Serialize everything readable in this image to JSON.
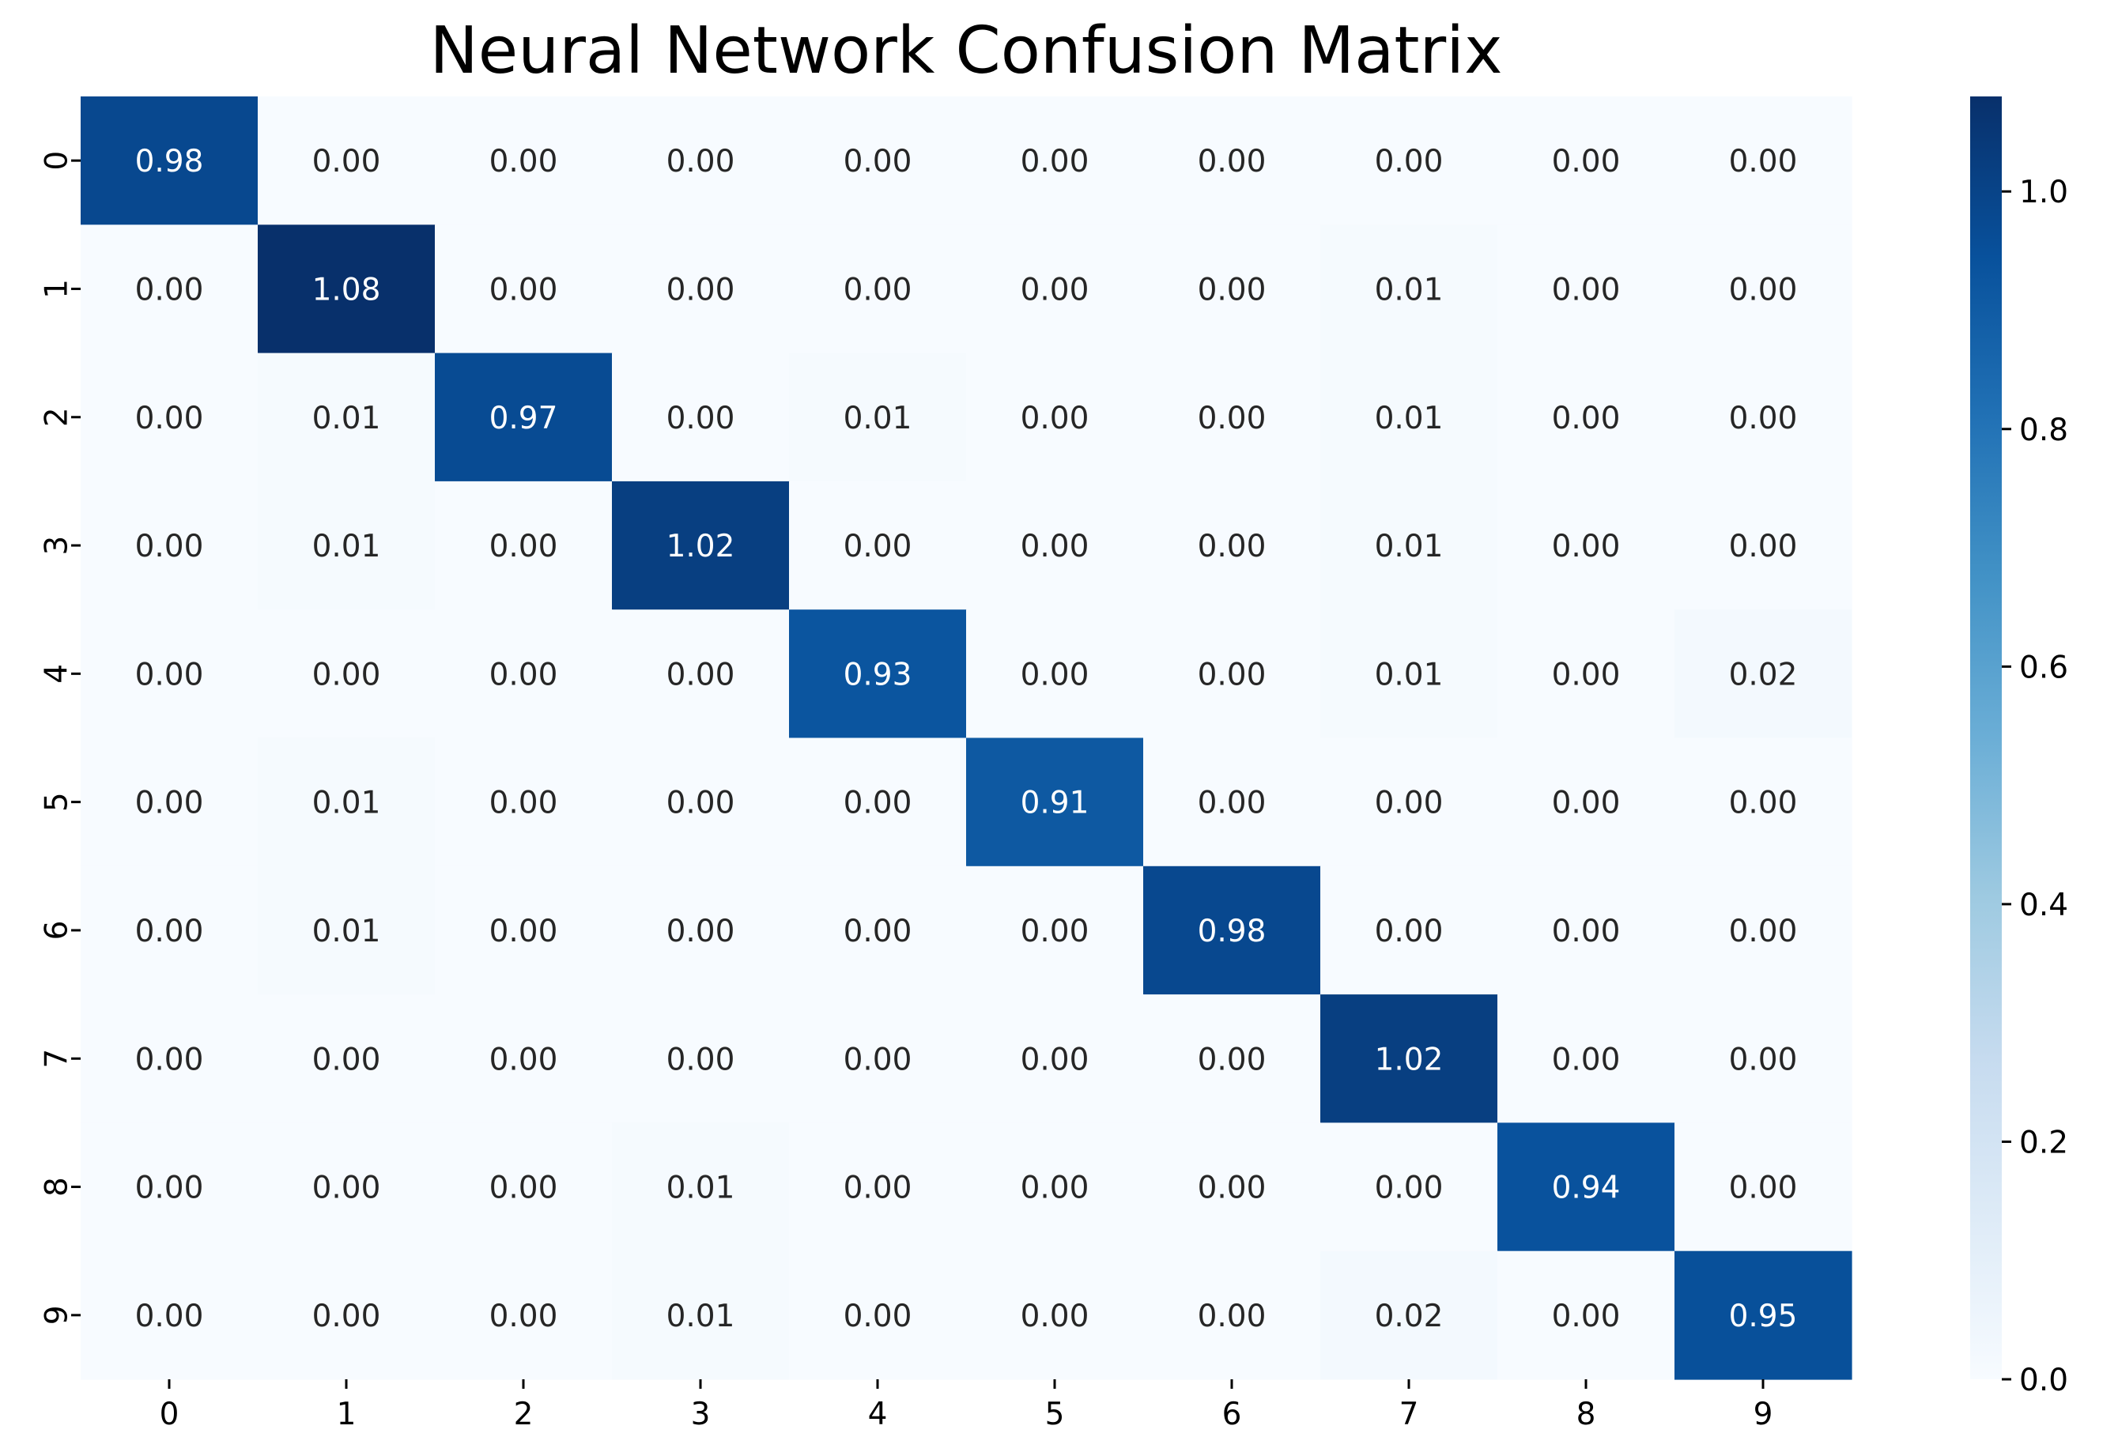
{
  "chart_data": {
    "type": "heatmap",
    "title": "Neural Network Confusion Matrix",
    "xlabel": "",
    "ylabel": "",
    "x_categories": [
      "0",
      "1",
      "2",
      "3",
      "4",
      "5",
      "6",
      "7",
      "8",
      "9"
    ],
    "y_categories": [
      "0",
      "1",
      "2",
      "3",
      "4",
      "5",
      "6",
      "7",
      "8",
      "9"
    ],
    "values": [
      [
        0.98,
        0.0,
        0.0,
        0.0,
        0.0,
        0.0,
        0.0,
        0.0,
        0.0,
        0.0
      ],
      [
        0.0,
        1.08,
        0.0,
        0.0,
        0.0,
        0.0,
        0.0,
        0.01,
        0.0,
        0.0
      ],
      [
        0.0,
        0.01,
        0.97,
        0.0,
        0.01,
        0.0,
        0.0,
        0.01,
        0.0,
        0.0
      ],
      [
        0.0,
        0.01,
        0.0,
        1.02,
        0.0,
        0.0,
        0.0,
        0.01,
        0.0,
        0.0
      ],
      [
        0.0,
        0.0,
        0.0,
        0.0,
        0.93,
        0.0,
        0.0,
        0.01,
        0.0,
        0.02
      ],
      [
        0.0,
        0.01,
        0.0,
        0.0,
        0.0,
        0.91,
        0.0,
        0.0,
        0.0,
        0.0
      ],
      [
        0.0,
        0.01,
        0.0,
        0.0,
        0.0,
        0.0,
        0.98,
        0.0,
        0.0,
        0.0
      ],
      [
        0.0,
        0.0,
        0.0,
        0.0,
        0.0,
        0.0,
        0.0,
        1.02,
        0.0,
        0.0
      ],
      [
        0.0,
        0.0,
        0.0,
        0.01,
        0.0,
        0.0,
        0.0,
        0.0,
        0.94,
        0.0
      ],
      [
        0.0,
        0.0,
        0.0,
        0.01,
        0.0,
        0.0,
        0.0,
        0.02,
        0.0,
        0.95
      ]
    ],
    "value_format": "0.00",
    "colormap": "Blues",
    "colormap_stops": [
      "#f7fbff",
      "#deebf7",
      "#c6dbef",
      "#9ecae1",
      "#6baed6",
      "#4292c6",
      "#2171b5",
      "#08519c",
      "#08306b"
    ],
    "color_range": [
      0.0,
      1.08
    ],
    "colorbar_ticks": [
      "0.0",
      "0.2",
      "0.4",
      "0.6",
      "0.8",
      "1.0"
    ],
    "colorbar_tick_values": [
      0.0,
      0.2,
      0.4,
      0.6,
      0.8,
      1.0
    ],
    "grid": false,
    "legend": "colorbar-right"
  }
}
